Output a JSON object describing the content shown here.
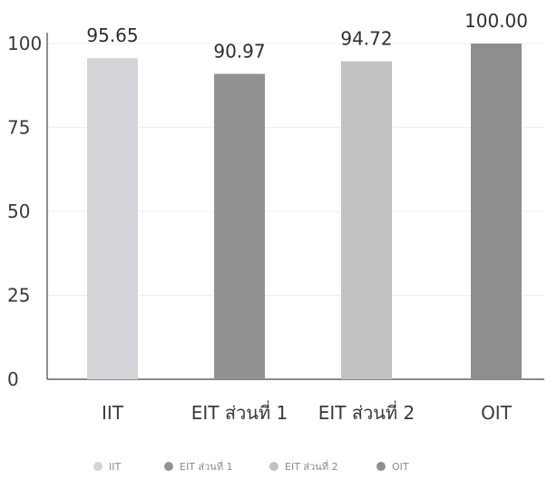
{
  "chart_data": {
    "type": "bar",
    "title": "",
    "xlabel": "",
    "ylabel": "",
    "categories": [
      "IIT",
      "EIT ส่วนที่ 1",
      "EIT ส่วนที่ 2",
      "OIT"
    ],
    "values": [
      95.65,
      90.97,
      94.72,
      100.0
    ],
    "value_labels": [
      "95.65",
      "90.97",
      "94.72",
      "100.00"
    ],
    "ylim": [
      0,
      100
    ],
    "yticks": [
      0,
      25,
      50,
      75,
      100
    ],
    "ytick_labels": [
      "0",
      "25",
      "50",
      "75",
      "100"
    ],
    "grid": true,
    "legend": {
      "position": "bottom",
      "entries": [
        "IIT",
        "EIT ส่วนที่ 1",
        "EIT ส่วนที่ 2",
        "OIT"
      ]
    },
    "colors": [
      "#d3d4d8",
      "#909294",
      "#c1c2c4",
      "#8c8e90"
    ]
  }
}
